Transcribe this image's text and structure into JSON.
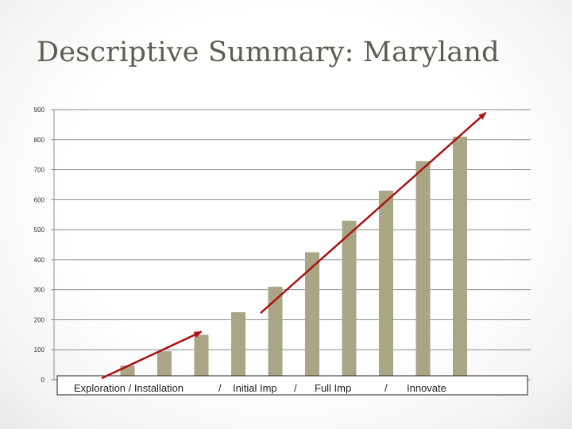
{
  "slide": {
    "title": "Descriptive Summary: Maryland"
  },
  "chart_data": {
    "type": "bar",
    "ylim": [
      0,
      900
    ],
    "yticks": [
      0,
      100,
      200,
      300,
      400,
      500,
      600,
      700,
      800,
      900
    ],
    "yticks_labels": [
      "0",
      "100",
      "200",
      "300",
      "400",
      "500",
      "600",
      "700",
      "800",
      "900"
    ],
    "grid": true,
    "values": [
      3,
      47,
      95,
      150,
      225,
      310,
      425,
      530,
      630,
      728,
      810
    ],
    "bar_color": "#aaa584",
    "arrow_color": "#aa1212",
    "phase_labels": [
      "Exploration / Installation",
      "/",
      "Initial Imp",
      "/",
      "Full Imp",
      "/",
      "Innovate"
    ],
    "trend_arrows": [
      {
        "name": "early-trend",
        "from": [
          0.3,
          5
        ],
        "to": [
          3.0,
          160
        ]
      },
      {
        "name": "growth-trend",
        "from": [
          4.6,
          222
        ],
        "to": [
          10.7,
          890
        ]
      }
    ]
  }
}
